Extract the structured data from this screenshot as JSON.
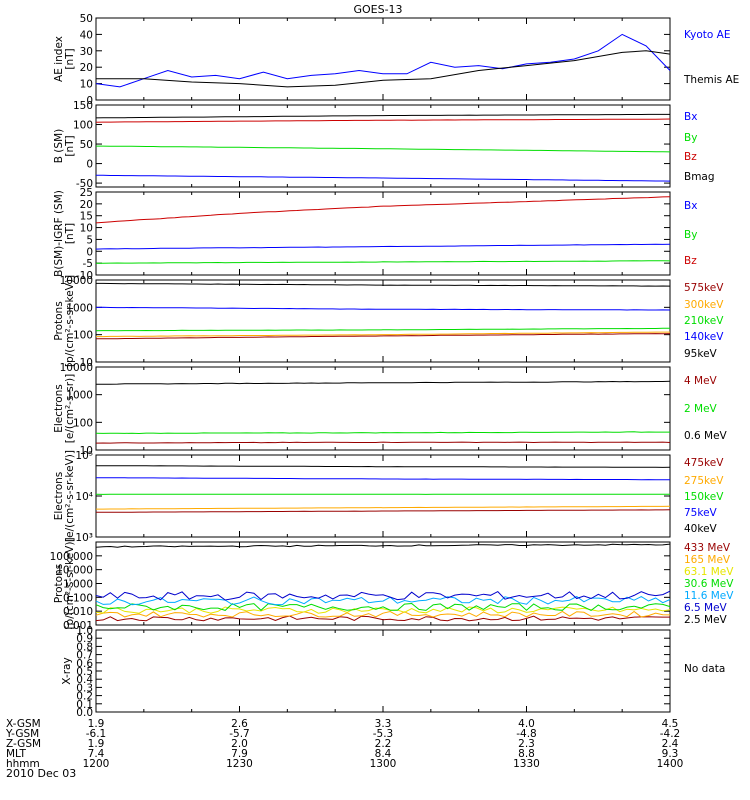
{
  "title": "GOES-13",
  "date": "2010 Dec 03",
  "time_axis": {
    "start": "1200",
    "end": "1400",
    "rows": [
      {
        "label": "X-GSM",
        "values": [
          "1.9",
          "2.6",
          "3.3",
          "4.0",
          "4.5"
        ]
      },
      {
        "label": "Y-GSM",
        "values": [
          "-6.1",
          "-5.7",
          "-5.3",
          "-4.8",
          "-4.2"
        ]
      },
      {
        "label": "Z-GSM",
        "values": [
          "1.9",
          "2.0",
          "2.2",
          "2.3",
          "2.4"
        ]
      },
      {
        "label": "MLT",
        "values": [
          "7.4",
          "7.9",
          "8.4",
          "8.8",
          "9.3"
        ]
      },
      {
        "label": "hhmm",
        "values": [
          "1200",
          "1230",
          "1300",
          "1330",
          "1400"
        ]
      }
    ]
  },
  "colors": {
    "black": "#000000",
    "blue": "#0000ff",
    "green": "#00dd00",
    "red": "#cc0000",
    "darkred": "#990000",
    "orange": "#ffaa00",
    "yellow": "#e6e600",
    "cyan": "#00aaff",
    "purple": "#aa00aa",
    "navy": "#0000cc"
  },
  "chart_data": [
    {
      "id": "ae",
      "type": "line",
      "ylabel": "AE index\n[nT]",
      "scale": "linear",
      "ylim": [
        0,
        50
      ],
      "yticks": [
        0,
        10,
        20,
        30,
        40,
        50
      ],
      "series": [
        {
          "name": "Kyoto AE",
          "color": "blue",
          "points": [
            [
              1200,
              10
            ],
            [
              1205,
              8
            ],
            [
              1210,
              13
            ],
            [
              1215,
              18
            ],
            [
              1220,
              14
            ],
            [
              1225,
              15
            ],
            [
              1230,
              13
            ],
            [
              1235,
              17
            ],
            [
              1240,
              13
            ],
            [
              1245,
              15
            ],
            [
              1250,
              16
            ],
            [
              1255,
              18
            ],
            [
              1300,
              16
            ],
            [
              1305,
              16
            ],
            [
              1310,
              23
            ],
            [
              1315,
              20
            ],
            [
              1320,
              21
            ],
            [
              1325,
              19
            ],
            [
              1330,
              22
            ],
            [
              1335,
              23
            ],
            [
              1340,
              25
            ],
            [
              1345,
              30
            ],
            [
              1350,
              40
            ],
            [
              1355,
              33
            ],
            [
              1400,
              18
            ]
          ]
        },
        {
          "name": "Themis AE",
          "color": "black",
          "points": [
            [
              1200,
              13
            ],
            [
              1210,
              13
            ],
            [
              1220,
              11
            ],
            [
              1230,
              10
            ],
            [
              1240,
              8
            ],
            [
              1250,
              9
            ],
            [
              1300,
              12
            ],
            [
              1310,
              13
            ],
            [
              1320,
              18
            ],
            [
              1330,
              21
            ],
            [
              1340,
              24
            ],
            [
              1350,
              29
            ],
            [
              1355,
              30
            ],
            [
              1400,
              28
            ]
          ]
        }
      ]
    },
    {
      "id": "b",
      "type": "line",
      "ylabel": "B (SM)\n[nT]",
      "scale": "linear",
      "ylim": [
        -60,
        150
      ],
      "yticks": [
        -50,
        0,
        50,
        100,
        150
      ],
      "series": [
        {
          "name": "Bx",
          "color": "blue",
          "points": [
            [
              1200,
              -30
            ],
            [
              1300,
              -37
            ],
            [
              1400,
              -45
            ]
          ]
        },
        {
          "name": "By",
          "color": "green",
          "points": [
            [
              1200,
              45
            ],
            [
              1300,
              38
            ],
            [
              1400,
              30
            ]
          ]
        },
        {
          "name": "Bz",
          "color": "red",
          "points": [
            [
              1200,
              106
            ],
            [
              1300,
              111
            ],
            [
              1400,
              114
            ]
          ]
        },
        {
          "name": "Bmag",
          "color": "black",
          "points": [
            [
              1200,
              117
            ],
            [
              1300,
              123
            ],
            [
              1400,
              126
            ]
          ]
        }
      ]
    },
    {
      "id": "igrf",
      "type": "line",
      "ylabel": "B(SM)-IGRF (SM)\n[nT]",
      "scale": "linear",
      "ylim": [
        -10,
        25
      ],
      "yticks": [
        -10,
        -5,
        0,
        5,
        10,
        15,
        20,
        25
      ],
      "series": [
        {
          "name": "Bx",
          "color": "blue",
          "points": [
            [
              1200,
              1
            ],
            [
              1300,
              2
            ],
            [
              1400,
              3
            ]
          ]
        },
        {
          "name": "By",
          "color": "green",
          "points": [
            [
              1200,
              -5
            ],
            [
              1300,
              -4.5
            ],
            [
              1400,
              -4
            ]
          ]
        },
        {
          "name": "Bz",
          "color": "red",
          "points": [
            [
              1200,
              12
            ],
            [
              1230,
              16
            ],
            [
              1300,
              19
            ],
            [
              1330,
              21
            ],
            [
              1400,
              23
            ]
          ]
        }
      ]
    },
    {
      "id": "protons_kev",
      "type": "line",
      "ylabel": "Protons\n[p/(cm²-s-sr-keV)]",
      "scale": "log",
      "ylim": [
        10,
        10000
      ],
      "yticks": [
        "10",
        "100",
        "1000",
        "10000"
      ],
      "series": [
        {
          "name": "575keV",
          "color": "darkred",
          "points": [
            [
              1200,
              70
            ],
            [
              1300,
              90
            ],
            [
              1400,
              110
            ]
          ]
        },
        {
          "name": "300keV",
          "color": "orange",
          "points": [
            [
              1200,
              85
            ],
            [
              1300,
              100
            ],
            [
              1400,
              125
            ]
          ]
        },
        {
          "name": "210keV",
          "color": "green",
          "points": [
            [
              1200,
              140
            ],
            [
              1300,
              150
            ],
            [
              1400,
              170
            ]
          ]
        },
        {
          "name": "140keV",
          "color": "blue",
          "points": [
            [
              1200,
              1000
            ],
            [
              1300,
              850
            ],
            [
              1400,
              800
            ]
          ]
        },
        {
          "name": "95keV",
          "color": "black",
          "points": [
            [
              1200,
              7500
            ],
            [
              1300,
              6500
            ],
            [
              1400,
              6000
            ]
          ]
        }
      ]
    },
    {
      "id": "electrons_mev",
      "type": "line",
      "ylabel": "Electrons\n[e/(cm²-s-sr)]",
      "scale": "log",
      "ylim": [
        10,
        10000
      ],
      "yticks": [
        "10",
        "100",
        "1000",
        "10000"
      ],
      "series": [
        {
          "name": "4 MeV",
          "color": "darkred",
          "points": [
            [
              1200,
              18
            ],
            [
              1300,
              19
            ],
            [
              1400,
              19
            ]
          ]
        },
        {
          "name": "2 MeV",
          "color": "green",
          "points": [
            [
              1200,
              40
            ],
            [
              1300,
              42
            ],
            [
              1400,
              45
            ]
          ]
        },
        {
          "name": "0.6 MeV",
          "color": "black",
          "points": [
            [
              1200,
              2400
            ],
            [
              1300,
              2700
            ],
            [
              1400,
              3000
            ]
          ]
        }
      ]
    },
    {
      "id": "electrons_kev",
      "type": "line",
      "ylabel": "Electrons\n[e/(cm²-s-sr-keV)]",
      "scale": "log",
      "ylim": [
        1000,
        100000
      ],
      "yticks": [
        "10³",
        "10⁴",
        "10⁵"
      ],
      "series": [
        {
          "name": "475keV",
          "color": "darkred",
          "points": [
            [
              1200,
              4000
            ],
            [
              1300,
              4300
            ],
            [
              1400,
              4600
            ]
          ]
        },
        {
          "name": "275keV",
          "color": "orange",
          "points": [
            [
              1200,
              4800
            ],
            [
              1300,
              5200
            ],
            [
              1400,
              5600
            ]
          ]
        },
        {
          "name": "150keV",
          "color": "green",
          "points": [
            [
              1200,
              11000
            ],
            [
              1300,
              11000
            ],
            [
              1400,
              11000
            ]
          ]
        },
        {
          "name": "75keV",
          "color": "blue",
          "points": [
            [
              1200,
              28000
            ],
            [
              1300,
              26000
            ],
            [
              1400,
              25000
            ]
          ]
        },
        {
          "name": "40keV",
          "color": "black",
          "points": [
            [
              1200,
              55000
            ],
            [
              1300,
              52000
            ],
            [
              1400,
              50000
            ]
          ]
        }
      ]
    },
    {
      "id": "protons_mev",
      "type": "line",
      "ylabel": "Protons\n[p/(cm²-s-sr-keV)]",
      "scale": "log",
      "ylim": [
        0.001,
        1000
      ],
      "yticks": [
        "0.001",
        "0.010",
        "0.100",
        "1.000",
        "10.000",
        "100.000"
      ],
      "series": [
        {
          "name": "433 MeV",
          "color": "darkred",
          "points": [
            [
              1200,
              0.003
            ],
            [
              1300,
              0.003
            ],
            [
              1400,
              0.003
            ]
          ]
        },
        {
          "name": "165 MeV",
          "color": "orange",
          "points": [
            [
              1200,
              0.006
            ],
            [
              1300,
              0.006
            ],
            [
              1400,
              0.006
            ]
          ]
        },
        {
          "name": "63.1 MeV",
          "color": "yellow",
          "points": [
            [
              1200,
              0.012
            ],
            [
              1300,
              0.012
            ],
            [
              1400,
              0.012
            ]
          ]
        },
        {
          "name": "30.6 MeV",
          "color": "green",
          "points": [
            [
              1200,
              0.02
            ],
            [
              1300,
              0.02
            ],
            [
              1400,
              0.02
            ]
          ]
        },
        {
          "name": "11.6 MeV",
          "color": "cyan",
          "points": [
            [
              1200,
              0.05
            ],
            [
              1300,
              0.06
            ],
            [
              1400,
              0.06
            ]
          ]
        },
        {
          "name": "6.5 MeV",
          "color": "navy",
          "points": [
            [
              1200,
              0.12
            ],
            [
              1300,
              0.13
            ],
            [
              1400,
              0.14
            ]
          ]
        },
        {
          "name": "2.5 MeV",
          "color": "black",
          "points": [
            [
              1200,
              450
            ],
            [
              1300,
              550
            ],
            [
              1400,
              650
            ]
          ]
        }
      ]
    },
    {
      "id": "xray",
      "type": "line",
      "ylabel": "X-ray",
      "scale": "linear",
      "ylim": [
        0,
        1
      ],
      "yticks": [
        "0.0",
        "0.1",
        "0.2",
        "0.3",
        "0.4",
        "0.5",
        "0.6",
        "0.7",
        "0.8",
        "0.9",
        "1.0"
      ],
      "note": "No data",
      "series": []
    }
  ]
}
